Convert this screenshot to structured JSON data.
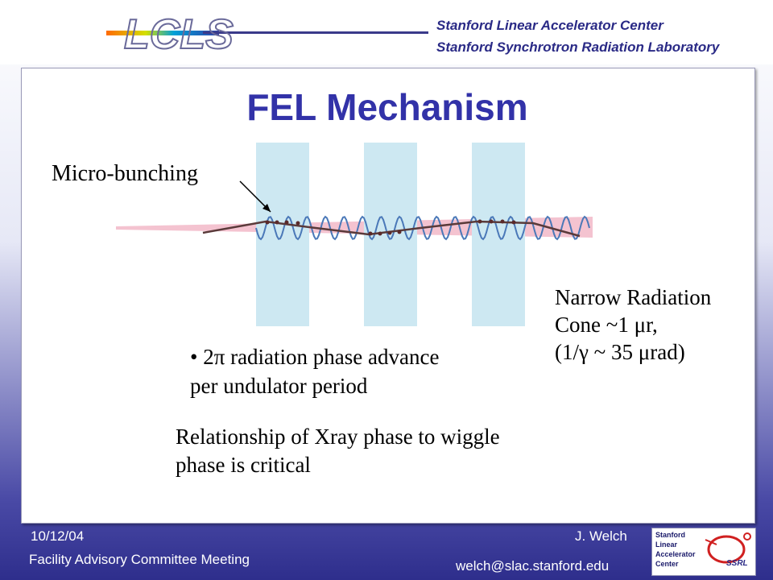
{
  "header": {
    "logo_text": "LCLS",
    "org_line1": "Stanford Linear Accelerator Center",
    "org_line2": "Stanford Synchrotron Radiation Laboratory"
  },
  "slide": {
    "title": "FEL Mechanism",
    "label_microbunching": "Micro-bunching",
    "narrow_radiation": "Narrow Radiation\nCone ~1 μr,\n(1/γ ~ 35 μrad)",
    "bullet": "• 2π radiation phase advance\nper undulator period",
    "relationship": "Relationship of Xray phase to wiggle\nphase is critical"
  },
  "footer": {
    "date": "10/12/04",
    "meeting": "Facility Advisory Committee Meeting",
    "author": "J. Welch",
    "email": "welch@slac.stanford.edu",
    "badge_slac": "Stanford\nLinear\nAccelerator\nCenter",
    "badge_ssrl": "SSRL"
  },
  "colors": {
    "title": "#3232a8",
    "undulator_band": "#cde8f2",
    "wave": "#4a78b8",
    "electron_path": "#5a3a3a",
    "radiation_cone": "#f2b8c8"
  }
}
